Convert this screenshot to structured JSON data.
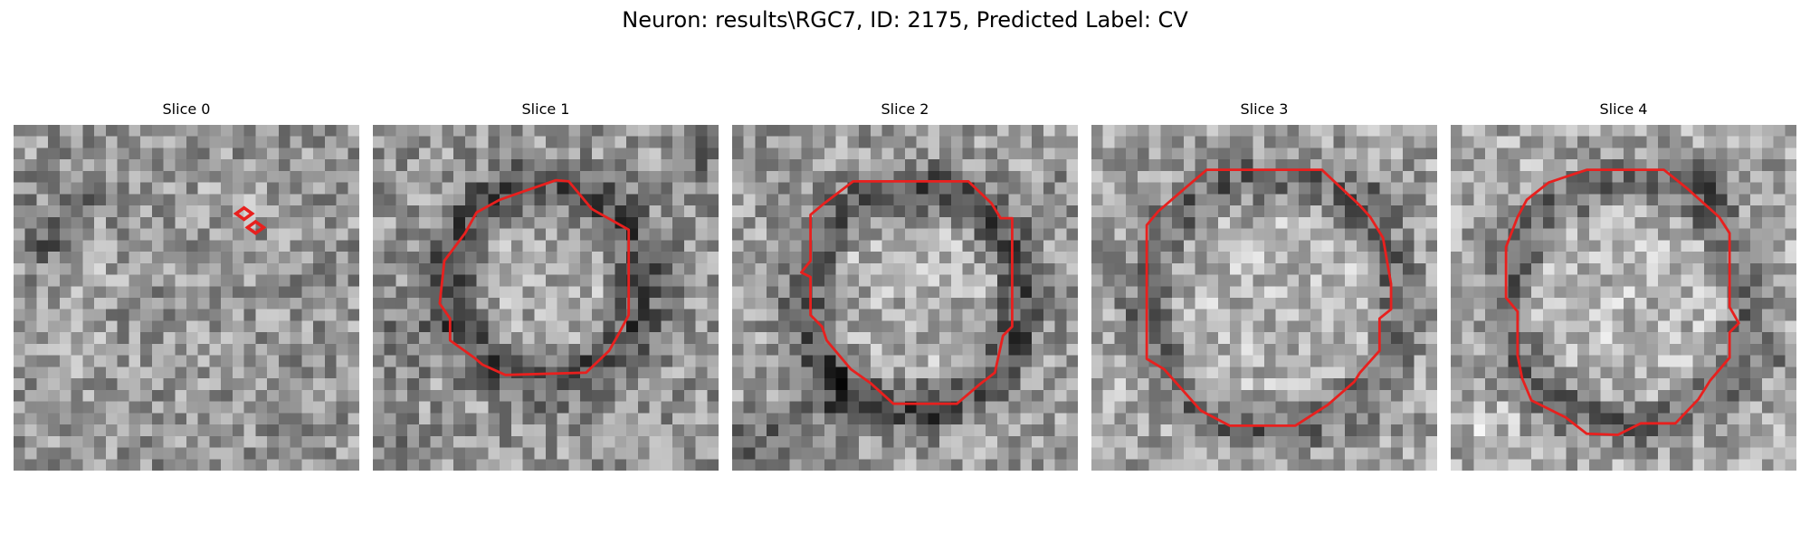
{
  "figure": {
    "title": "Neuron: results\\RGC7, ID: 2175, Predicted Label: CV",
    "contour_color": "#e8201e",
    "colormap": "gray",
    "panels": [
      {
        "title": "Slice 0",
        "label": "Slice 0"
      },
      {
        "title": "Slice 1",
        "label": "Slice 1"
      },
      {
        "title": "Slice 2",
        "label": "Slice 2"
      },
      {
        "title": "Slice 3",
        "label": "Slice 3"
      },
      {
        "title": "Slice 4",
        "label": "Slice 4"
      }
    ]
  }
}
